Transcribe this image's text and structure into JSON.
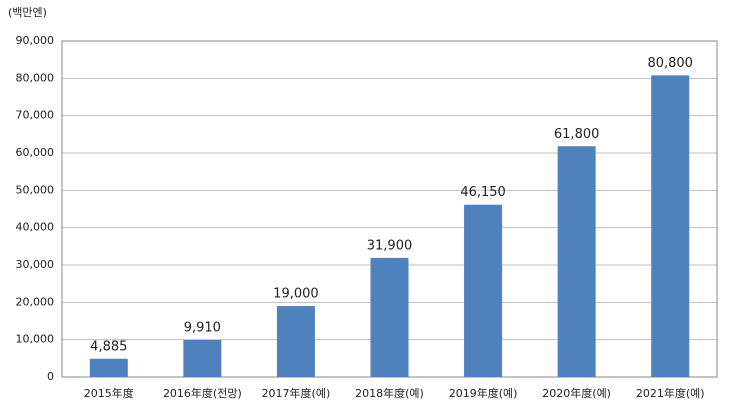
{
  "chart_data": {
    "type": "bar",
    "unit_label": "(백만엔)",
    "categories": [
      "2015年度",
      "2016年度(전망)",
      "2017年度(예)",
      "2018年度(예)",
      "2019年度(예)",
      "2020年度(예)",
      "2021年度(예)"
    ],
    "values": [
      4885,
      9910,
      19000,
      31900,
      46150,
      61800,
      80800
    ],
    "value_labels": [
      "4,885",
      "9,910",
      "19,000",
      "31,900",
      "46,150",
      "61,800",
      "80,800"
    ],
    "color": "#4f81bd",
    "ylim": [
      0,
      90000
    ],
    "yticks": [
      0,
      {
        "value": 10000,
        "label": "10,000"
      },
      {
        "value": 20000,
        "label": "20,000"
      },
      {
        "value": 30000,
        "label": "30,000"
      },
      {
        "value": 40000,
        "label": "40,000"
      },
      {
        "value": 50000,
        "label": "50,000"
      },
      {
        "value": 60000,
        "label": "60,000"
      },
      {
        "value": 70000,
        "label": "70,000"
      },
      {
        "value": 80000,
        "label": "80,000"
      },
      {
        "value": 90000,
        "label": "90,000"
      }
    ],
    "grid": true
  }
}
